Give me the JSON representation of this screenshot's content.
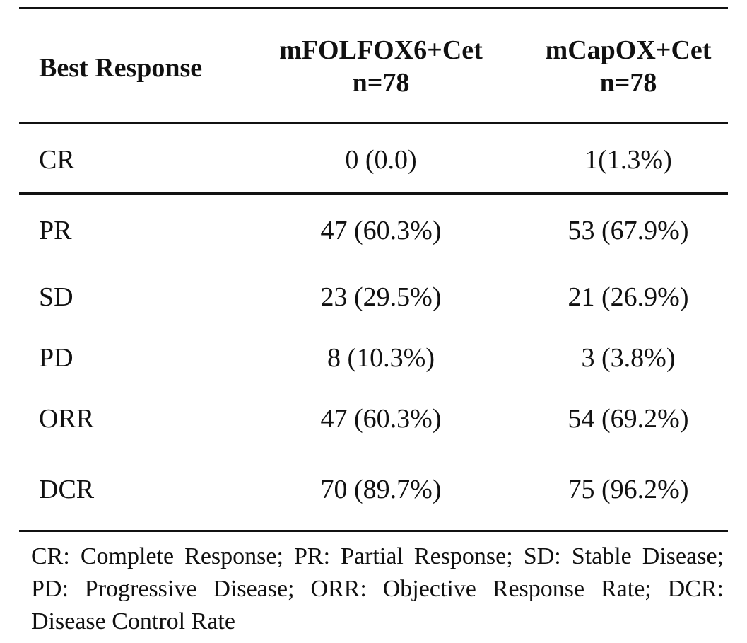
{
  "table": {
    "header": {
      "label": "Best Response",
      "col1_line1": "mFOLFOX6+Cet",
      "col1_line2": "n=78",
      "col2_line1": "mCapOX+Cet",
      "col2_line2": "n=78"
    },
    "rows": [
      {
        "label": "CR",
        "col1": "0 (0.0)",
        "col2": "1(1.3%)"
      },
      {
        "label": "PR",
        "col1": "47 (60.3%)",
        "col2": "53 (67.9%)"
      },
      {
        "label": "SD",
        "col1": "23 (29.5%)",
        "col2": "21 (26.9%)"
      },
      {
        "label": "PD",
        "col1": "8 (10.3%)",
        "col2": "3 (3.8%)"
      },
      {
        "label": "ORR",
        "col1": "47 (60.3%)",
        "col2": "54 (69.2%)"
      },
      {
        "label": "DCR",
        "col1": "70 (89.7%)",
        "col2": "75 (96.2%)"
      }
    ],
    "footnote": "CR: Complete Response;  PR: Partial Response;  SD: Stable Disease;  PD: Progressive Disease;  ORR: Objective Response Rate;  DCR: Disease Control Rate"
  }
}
